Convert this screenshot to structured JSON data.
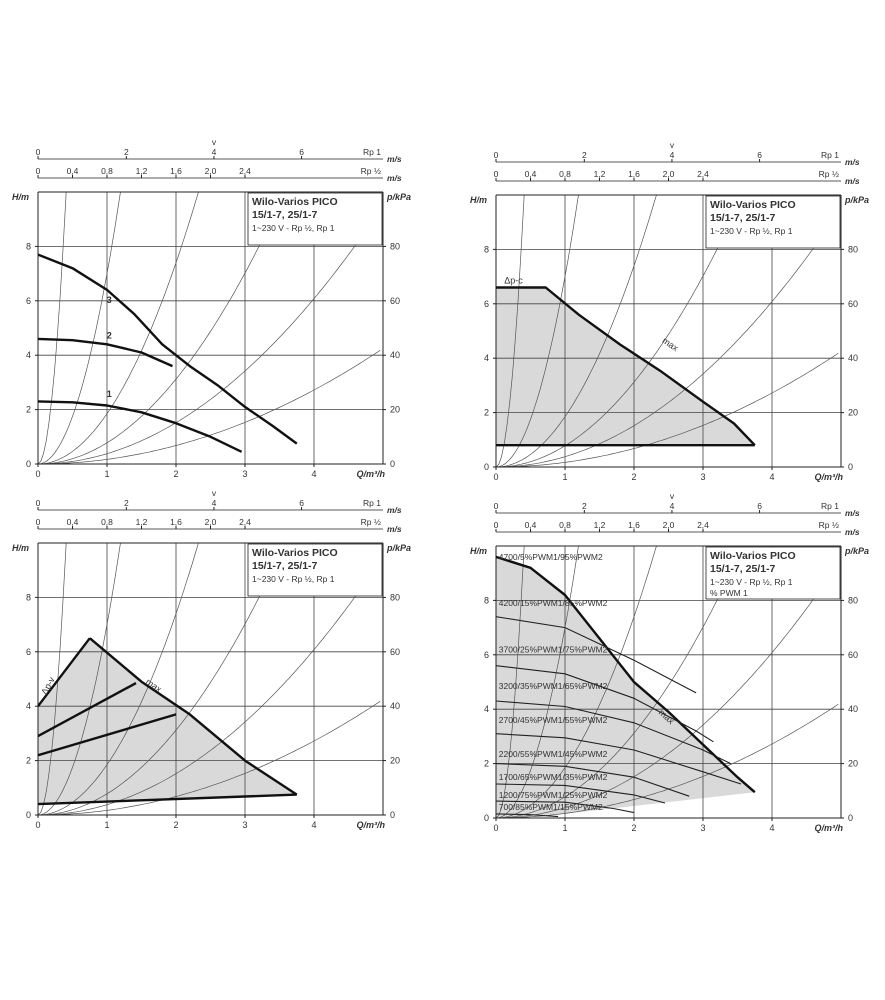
{
  "page": {
    "background": "#ffffff",
    "line_color": "#111111",
    "grid_color": "#444444",
    "area_fill": "#d9d9d9"
  },
  "chart_data": [
    {
      "id": "speeds",
      "type": "line",
      "info": {
        "title": "Wilo-Varios PICO",
        "models": "15/1-7, 25/1-7",
        "spec": "1~230 V - Rp ½, Rp 1",
        "extra": ""
      },
      "xlabel": "Q/m³/h",
      "ylabel": "H/m",
      "y2label": "p/kPa",
      "xlim": [
        0,
        5
      ],
      "ylim": [
        0,
        10
      ],
      "y2lim": [
        0,
        100
      ],
      "xticks": [
        0,
        1,
        2,
        3,
        4
      ],
      "yticks": [
        0,
        2,
        4,
        6,
        8
      ],
      "y2ticks": [
        0,
        20,
        40,
        60,
        80
      ],
      "top_axis_v": {
        "label": "v",
        "unit": "m/s",
        "pipe": "Rp 1",
        "ticks": [
          "0",
          "2",
          "4",
          "6"
        ],
        "tick_q": [
          0,
          1.28,
          2.55,
          3.82
        ]
      },
      "top_axis_vhalf": {
        "unit": "m/s",
        "pipe": "Rp ½",
        "ticks": [
          "0",
          "0,4",
          "0,8",
          "1,2",
          "1,6",
          "2,0",
          "2,4"
        ],
        "tick_q": [
          0,
          0.5,
          1.0,
          1.5,
          2.0,
          2.5,
          3.0
        ]
      },
      "system_curves_k": [
        60,
        7,
        1.85,
        0.78,
        0.38,
        0.17
      ],
      "series": [
        {
          "name": "3",
          "x": [
            0,
            0.5,
            1.0,
            1.4,
            1.8,
            2.2,
            2.6,
            3.0,
            3.4,
            3.75
          ],
          "y": [
            7.7,
            7.2,
            6.4,
            5.5,
            4.4,
            3.6,
            2.9,
            2.1,
            1.4,
            0.75
          ]
        },
        {
          "name": "2",
          "x": [
            0,
            0.5,
            1.0,
            1.5,
            1.95
          ],
          "y": [
            4.6,
            4.55,
            4.4,
            4.1,
            3.6
          ]
        },
        {
          "name": "1",
          "x": [
            0,
            0.5,
            1.0,
            1.5,
            2.0,
            2.5,
            2.95
          ],
          "y": [
            2.3,
            2.27,
            2.15,
            1.9,
            1.5,
            1.0,
            0.45
          ]
        }
      ]
    },
    {
      "id": "dpc",
      "type": "area",
      "info": {
        "title": "Wilo-Varios PICO",
        "models": "15/1-7, 25/1-7",
        "spec": "1~230 V - Rp ½, Rp 1",
        "extra": ""
      },
      "xlabel": "Q/m³/h",
      "ylabel": "H/m",
      "y2label": "p/kPa",
      "xlim": [
        0,
        5
      ],
      "ylim": [
        0,
        10
      ],
      "y2lim": [
        0,
        100
      ],
      "xticks": [
        0,
        1,
        2,
        3,
        4
      ],
      "yticks": [
        0,
        2,
        4,
        6,
        8
      ],
      "y2ticks": [
        0,
        20,
        40,
        60,
        80
      ],
      "top_axis_v": {
        "label": "v",
        "unit": "m/s",
        "pipe": "Rp 1",
        "ticks": [
          "0",
          "2",
          "4",
          "6"
        ],
        "tick_q": [
          0,
          1.28,
          2.55,
          3.82
        ]
      },
      "top_axis_vhalf": {
        "unit": "m/s",
        "pipe": "Rp ½",
        "ticks": [
          "0",
          "0,4",
          "0,8",
          "1,2",
          "1,6",
          "2,0",
          "2,4"
        ],
        "tick_q": [
          0,
          0.5,
          1.0,
          1.5,
          2.0,
          2.5,
          3.0
        ]
      },
      "system_curves_k": [
        60,
        7,
        1.85,
        0.78,
        0.38,
        0.17
      ],
      "label_dp": "Δp-c",
      "label_max": "max",
      "area": {
        "x": [
          0,
          0.72,
          1.2,
          1.8,
          2.4,
          3.0,
          3.45,
          3.75,
          3.75,
          0
        ],
        "y": [
          6.6,
          6.6,
          5.6,
          4.5,
          3.5,
          2.4,
          1.6,
          0.8,
          0.8,
          0.8
        ]
      },
      "lines": [
        {
          "name": "max",
          "x": [
            0,
            0.72,
            1.2,
            1.8,
            2.4,
            3.0,
            3.45,
            3.75
          ],
          "y": [
            6.6,
            6.6,
            5.6,
            4.5,
            3.5,
            2.4,
            1.6,
            0.8
          ]
        },
        {
          "name": "min",
          "x": [
            0,
            3.75
          ],
          "y": [
            0.8,
            0.8
          ]
        }
      ]
    },
    {
      "id": "dpv",
      "type": "area",
      "info": {
        "title": "Wilo-Varios PICO",
        "models": "15/1-7, 25/1-7",
        "spec": "1~230 V - Rp ½, Rp 1",
        "extra": ""
      },
      "xlabel": "Q/m³/h",
      "ylabel": "H/m",
      "y2label": "p/kPa",
      "xlim": [
        0,
        5
      ],
      "ylim": [
        0,
        10
      ],
      "y2lim": [
        0,
        100
      ],
      "xticks": [
        0,
        1,
        2,
        3,
        4
      ],
      "yticks": [
        0,
        2,
        4,
        6,
        8
      ],
      "y2ticks": [
        0,
        20,
        40,
        60,
        80
      ],
      "top_axis_v": {
        "label": "v",
        "unit": "m/s",
        "pipe": "Rp 1",
        "ticks": [
          "0",
          "2",
          "4",
          "6"
        ],
        "tick_q": [
          0,
          1.28,
          2.55,
          3.82
        ]
      },
      "top_axis_vhalf": {
        "unit": "m/s",
        "pipe": "Rp ½",
        "ticks": [
          "0",
          "0,4",
          "0,8",
          "1,2",
          "1,6",
          "2,0",
          "2,4"
        ],
        "tick_q": [
          0,
          0.5,
          1.0,
          1.5,
          2.0,
          2.5,
          3.0
        ]
      },
      "system_curves_k": [
        60,
        7,
        1.85,
        0.78,
        0.38,
        0.17
      ],
      "label_dp": "Δp-v",
      "label_max": "max",
      "area": {
        "x": [
          0,
          0.75,
          1.5,
          2.2,
          3.0,
          3.75,
          0
        ],
        "y": [
          4.0,
          6.5,
          4.9,
          3.7,
          2.0,
          0.75,
          0.4
        ]
      },
      "lines": [
        {
          "name": "left",
          "x": [
            0,
            0.75
          ],
          "y": [
            4.0,
            6.5
          ]
        },
        {
          "name": "max",
          "x": [
            0.75,
            1.5,
            2.2,
            3.0,
            3.75
          ],
          "y": [
            6.5,
            4.9,
            3.7,
            2.0,
            0.75
          ]
        },
        {
          "name": "min",
          "x": [
            0,
            3.75
          ],
          "y": [
            0.4,
            0.75
          ]
        },
        {
          "name": "mid1",
          "x": [
            0,
            1.42
          ],
          "y": [
            2.9,
            4.85
          ]
        },
        {
          "name": "mid2",
          "x": [
            0,
            2.0
          ],
          "y": [
            2.2,
            3.7
          ]
        }
      ]
    },
    {
      "id": "pwm",
      "type": "area",
      "info": {
        "title": "Wilo-Varios PICO",
        "models": "15/1-7, 25/1-7",
        "spec": "1~230 V - Rp ½, Rp 1",
        "extra": "% PWM 1"
      },
      "xlabel": "Q/m³/h",
      "ylabel": "H/m",
      "y2label": "p/kPa",
      "xlim": [
        0,
        5
      ],
      "ylim": [
        0,
        10
      ],
      "y2lim": [
        0,
        100
      ],
      "xticks": [
        0,
        1,
        2,
        3,
        4
      ],
      "yticks": [
        0,
        2,
        4,
        6,
        8
      ],
      "y2ticks": [
        0,
        20,
        40,
        60,
        80
      ],
      "top_axis_v": {
        "label": "v",
        "unit": "m/s",
        "pipe": "Rp 1",
        "ticks": [
          "0",
          "2",
          "4",
          "6"
        ],
        "tick_q": [
          0,
          1.28,
          2.55,
          3.82
        ]
      },
      "top_axis_vhalf": {
        "unit": "m/s",
        "pipe": "Rp ½",
        "ticks": [
          "0",
          "0,4",
          "0,8",
          "1,2",
          "1,6",
          "2,0",
          "2,4"
        ],
        "tick_q": [
          0,
          0.5,
          1.0,
          1.5,
          2.0,
          2.5,
          3.0
        ]
      },
      "system_curves_k": [
        60,
        7,
        1.85,
        0.78,
        0.38,
        0.17
      ],
      "label_max": "max",
      "pwm_labels": [
        {
          "text": "4700/5%PWM1/95%PWM2",
          "y": 9.6
        },
        {
          "text": "4200/15%PWM1/85%PWM2",
          "y": 7.9
        },
        {
          "text": "3700/25%PWM1/75%PWM2",
          "y": 6.2
        },
        {
          "text": "3200/35%PWM1/65%PWM2",
          "y": 4.85
        },
        {
          "text": "2700/45%PWM1/55%PWM2",
          "y": 3.6
        },
        {
          "text": "2200/55%PWM1/45%PWM2",
          "y": 2.35
        },
        {
          "text": "1700/65%PWM1/35%PWM2",
          "y": 1.5
        },
        {
          "text": "1200/75%PWM1/25%PWM2",
          "y": 0.85
        },
        {
          "text": "700/85%PWM1/15%PWM2",
          "y": 0.4
        }
      ],
      "area": {
        "x": [
          0,
          0.5,
          1.0,
          1.5,
          2.0,
          2.5,
          3.0,
          3.5,
          3.75,
          1.0,
          0
        ],
        "y": [
          9.6,
          9.2,
          8.2,
          6.6,
          5.0,
          3.9,
          2.7,
          1.5,
          0.95,
          0.15,
          0
        ]
      },
      "lines": [
        {
          "name": "max",
          "x": [
            0,
            0.5,
            1.0,
            1.5,
            2.0,
            2.5,
            3.0,
            3.5,
            3.75
          ],
          "y": [
            9.6,
            9.2,
            8.2,
            6.6,
            5.0,
            3.9,
            2.7,
            1.5,
            0.95
          ]
        }
      ],
      "speed_curves": [
        {
          "x": [
            0,
            1.0,
            2.0,
            2.9
          ],
          "y": [
            7.4,
            7.0,
            5.8,
            4.6
          ],
          "end": 4.6
        },
        {
          "x": [
            0,
            1.0,
            2.0,
            2.9,
            3.15
          ],
          "y": [
            5.6,
            5.3,
            4.4,
            3.2,
            2.8
          ]
        },
        {
          "x": [
            0,
            1.0,
            2.0,
            3.0,
            3.4
          ],
          "y": [
            4.3,
            4.1,
            3.5,
            2.5,
            2.0
          ]
        },
        {
          "x": [
            0,
            1.0,
            2.0,
            3.0,
            3.55
          ],
          "y": [
            3.1,
            2.95,
            2.5,
            1.7,
            1.25
          ]
        },
        {
          "x": [
            0,
            1.0,
            2.0,
            2.8
          ],
          "y": [
            2.0,
            1.9,
            1.5,
            0.8
          ]
        },
        {
          "x": [
            0,
            1.0,
            2.0,
            2.45
          ],
          "y": [
            1.25,
            1.2,
            0.85,
            0.55
          ]
        },
        {
          "x": [
            0,
            1.0,
            1.7,
            2.0
          ],
          "y": [
            0.62,
            0.58,
            0.35,
            0.2
          ]
        },
        {
          "x": [
            0,
            0.5,
            0.9
          ],
          "y": [
            0.15,
            0.12,
            0.05
          ]
        }
      ]
    }
  ]
}
